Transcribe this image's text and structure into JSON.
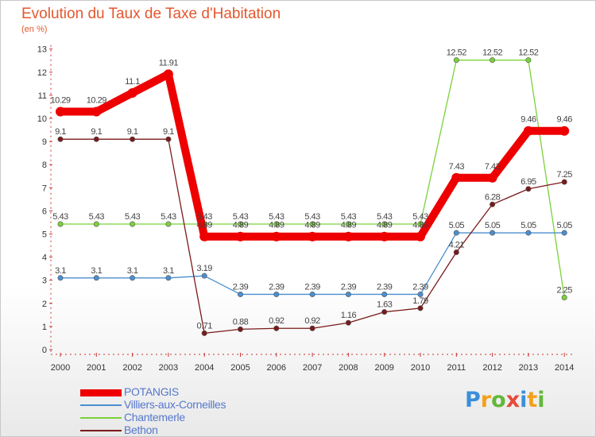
{
  "title": "Evolution du Taux de Taxe d'Habitation",
  "subtitle": "(en %)",
  "logo_text": "Proxiti",
  "chart_data": {
    "type": "line",
    "title": "Evolution du Taux de Taxe d'Habitation",
    "ylabel": "(en %)",
    "xlabel": "",
    "x": [
      "2000",
      "2001",
      "2002",
      "2003",
      "2004",
      "2005",
      "2006",
      "2007",
      "2008",
      "2009",
      "2010",
      "2011",
      "2012",
      "2013",
      "2014"
    ],
    "ylim": [
      0,
      13
    ],
    "yticks": [
      "0",
      "1",
      "2",
      "3",
      "4",
      "5",
      "6",
      "7",
      "8",
      "9",
      "10",
      "11",
      "12",
      "13"
    ],
    "grid": false,
    "legend_position": "bottom-left",
    "series": [
      {
        "name": "POTANGIS",
        "color": "#ee0000",
        "values": [
          10.29,
          10.29,
          11.1,
          11.91,
          4.89,
          4.89,
          4.89,
          4.89,
          4.89,
          4.89,
          4.89,
          7.43,
          7.43,
          9.46,
          9.46
        ],
        "labels": [
          "10.29",
          "10.29",
          "11.1",
          "11.91",
          "4.89",
          "4.89",
          "4.89",
          "4.89",
          "4.89",
          "4.89",
          "4.89",
          "7.43",
          "7.43",
          "9.46",
          "9.46"
        ]
      },
      {
        "name": "Villiers-aux-Corneilles",
        "color": "#4a8fd0",
        "values": [
          3.1,
          3.1,
          3.1,
          3.1,
          3.19,
          2.39,
          2.39,
          2.39,
          2.39,
          2.39,
          2.39,
          5.05,
          5.05,
          5.05,
          5.05
        ],
        "labels": [
          "3.1",
          "3.1",
          "3.1",
          "3.1",
          "3.19",
          "2.39",
          "2.39",
          "2.39",
          "2.39",
          "2.39",
          "2.39",
          "5.05",
          "5.05",
          "5.05",
          "5.05"
        ]
      },
      {
        "name": "Chantemerle",
        "color": "#7ad23a",
        "values": [
          5.43,
          5.43,
          5.43,
          5.43,
          5.43,
          5.43,
          5.43,
          5.43,
          5.43,
          5.43,
          5.43,
          12.52,
          12.52,
          12.52,
          2.25
        ],
        "labels": [
          "5.43",
          "5.43",
          "5.43",
          "5.43",
          "5.43",
          "5.43",
          "5.43",
          "5.43",
          "5.43",
          "5.43",
          "5.43",
          "12.52",
          "12.52",
          "12.52",
          "2.25"
        ]
      },
      {
        "name": "Bethon",
        "color": "#7a1a1a",
        "values": [
          9.1,
          9.1,
          9.1,
          9.1,
          0.71,
          0.88,
          0.92,
          0.92,
          1.16,
          1.63,
          1.79,
          4.21,
          6.28,
          6.95,
          7.25
        ],
        "labels": [
          "9.1",
          "9.1",
          "9.1",
          "9.1",
          "0.71",
          "0.88",
          "0.92",
          "0.92",
          "1.16",
          "1.63",
          "1.79",
          "4.21",
          "6.28",
          "6.95",
          "7.25"
        ]
      }
    ]
  }
}
